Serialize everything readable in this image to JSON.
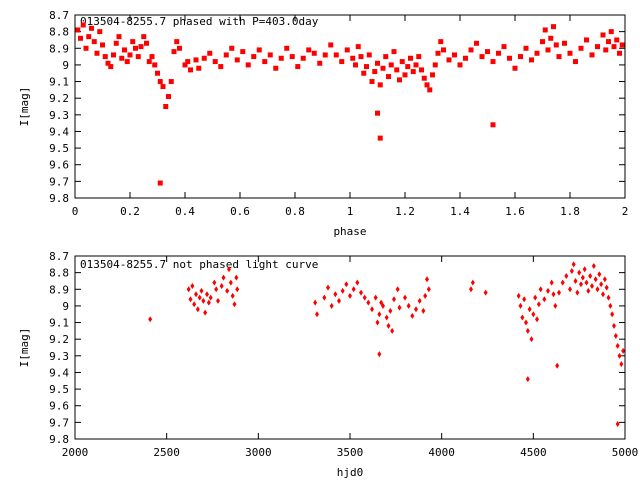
{
  "chart_data": [
    {
      "type": "scatter",
      "title": "013504-8255.7 phased with P=403.0day",
      "xlabel": "phase",
      "ylabel": "I[mag]",
      "xlim": [
        0,
        2
      ],
      "ylim": [
        9.8,
        8.7
      ],
      "y_inverted": true,
      "xticks": [
        "0",
        "0.2",
        "0.4",
        "0.6",
        "0.8",
        "1",
        "1.2",
        "1.4",
        "1.6",
        "1.8",
        "2"
      ],
      "yticks": [
        "8.7",
        "8.8",
        "8.9",
        "9",
        "9.1",
        "9.2",
        "9.3",
        "9.4",
        "9.5",
        "9.6",
        "9.7",
        "9.8"
      ],
      "marker_color": "#ff0000",
      "grid": false,
      "series": [
        {
          "points": [
            [
              0.01,
              8.79
            ],
            [
              0.02,
              8.84
            ],
            [
              0.03,
              8.76
            ],
            [
              0.04,
              8.9
            ],
            [
              0.05,
              8.83
            ],
            [
              0.06,
              8.78
            ],
            [
              0.07,
              8.86
            ],
            [
              0.08,
              8.93
            ],
            [
              0.09,
              8.8
            ],
            [
              0.1,
              8.88
            ],
            [
              0.11,
              8.95
            ],
            [
              0.12,
              8.99
            ],
            [
              0.13,
              9.01
            ],
            [
              0.14,
              8.94
            ],
            [
              0.15,
              8.87
            ],
            [
              0.16,
              8.83
            ],
            [
              0.17,
              8.96
            ],
            [
              0.18,
              8.91
            ],
            [
              0.19,
              8.98
            ],
            [
              0.2,
              8.94
            ],
            [
              0.21,
              8.86
            ],
            [
              0.22,
              8.9
            ],
            [
              0.23,
              8.95
            ],
            [
              0.24,
              8.89
            ],
            [
              0.25,
              8.83
            ],
            [
              0.26,
              8.87
            ],
            [
              0.27,
              8.98
            ],
            [
              0.28,
              8.95
            ],
            [
              0.29,
              9.0
            ],
            [
              0.3,
              9.05
            ],
            [
              0.31,
              9.1
            ],
            [
              0.32,
              9.13
            ],
            [
              0.33,
              9.25
            ],
            [
              0.34,
              9.19
            ],
            [
              0.35,
              9.1
            ],
            [
              0.36,
              8.92
            ],
            [
              0.37,
              8.86
            ],
            [
              0.38,
              8.9
            ],
            [
              0.4,
              9.0
            ],
            [
              0.41,
              8.98
            ],
            [
              0.42,
              9.03
            ],
            [
              0.44,
              8.97
            ],
            [
              0.45,
              9.02
            ],
            [
              0.47,
              8.96
            ],
            [
              0.49,
              8.93
            ],
            [
              0.51,
              8.98
            ],
            [
              0.53,
              9.01
            ],
            [
              0.55,
              8.94
            ],
            [
              0.57,
              8.9
            ],
            [
              0.59,
              8.97
            ],
            [
              0.61,
              8.92
            ],
            [
              0.63,
              9.0
            ],
            [
              0.65,
              8.95
            ],
            [
              0.67,
              8.91
            ],
            [
              0.69,
              8.98
            ],
            [
              0.71,
              8.94
            ],
            [
              0.73,
              9.02
            ],
            [
              0.75,
              8.96
            ],
            [
              0.77,
              8.9
            ],
            [
              0.79,
              8.95
            ],
            [
              0.81,
              9.01
            ],
            [
              0.83,
              8.96
            ],
            [
              0.85,
              8.91
            ],
            [
              0.87,
              8.93
            ],
            [
              0.89,
              8.99
            ],
            [
              0.91,
              8.94
            ],
            [
              0.93,
              8.88
            ],
            [
              0.95,
              8.94
            ],
            [
              0.97,
              8.98
            ],
            [
              0.99,
              8.91
            ],
            [
              1.01,
              8.96
            ],
            [
              1.02,
              9.0
            ],
            [
              1.03,
              8.89
            ],
            [
              1.04,
              8.95
            ],
            [
              1.05,
              9.05
            ],
            [
              1.06,
              9.01
            ],
            [
              1.07,
              8.94
            ],
            [
              1.08,
              9.1
            ],
            [
              1.09,
              9.04
            ],
            [
              1.1,
              8.99
            ],
            [
              1.11,
              9.12
            ],
            [
              1.12,
              9.02
            ],
            [
              1.13,
              8.95
            ],
            [
              1.14,
              9.07
            ],
            [
              1.15,
              9.0
            ],
            [
              1.16,
              8.92
            ],
            [
              1.17,
              9.03
            ],
            [
              1.18,
              9.09
            ],
            [
              1.19,
              8.98
            ],
            [
              1.2,
              9.06
            ],
            [
              1.21,
              9.01
            ],
            [
              1.22,
              8.96
            ],
            [
              1.23,
              9.04
            ],
            [
              1.24,
              9.0
            ],
            [
              1.25,
              8.95
            ],
            [
              1.26,
              9.03
            ],
            [
              1.27,
              9.08
            ],
            [
              1.28,
              9.12
            ],
            [
              1.29,
              9.15
            ],
            [
              1.3,
              9.06
            ],
            [
              1.31,
              9.0
            ],
            [
              1.32,
              8.93
            ],
            [
              1.33,
              8.86
            ],
            [
              1.34,
              8.91
            ],
            [
              1.36,
              8.97
            ],
            [
              1.38,
              8.94
            ],
            [
              1.4,
              9.0
            ],
            [
              1.42,
              8.96
            ],
            [
              1.44,
              8.91
            ],
            [
              1.46,
              8.87
            ],
            [
              1.48,
              8.95
            ],
            [
              1.5,
              8.92
            ],
            [
              1.52,
              8.98
            ],
            [
              1.54,
              8.93
            ],
            [
              1.56,
              8.89
            ],
            [
              1.58,
              8.96
            ],
            [
              1.6,
              9.02
            ],
            [
              1.62,
              8.95
            ],
            [
              1.64,
              8.9
            ],
            [
              1.66,
              8.97
            ],
            [
              1.68,
              8.93
            ],
            [
              1.7,
              8.86
            ],
            [
              1.71,
              8.79
            ],
            [
              1.72,
              8.91
            ],
            [
              1.73,
              8.84
            ],
            [
              1.74,
              8.77
            ],
            [
              1.75,
              8.88
            ],
            [
              1.76,
              8.95
            ],
            [
              1.78,
              8.87
            ],
            [
              1.8,
              8.93
            ],
            [
              1.82,
              8.98
            ],
            [
              1.84,
              8.9
            ],
            [
              1.86,
              8.85
            ],
            [
              1.88,
              8.94
            ],
            [
              1.9,
              8.89
            ],
            [
              1.92,
              8.82
            ],
            [
              1.93,
              8.91
            ],
            [
              1.94,
              8.86
            ],
            [
              1.95,
              8.8
            ],
            [
              1.96,
              8.89
            ],
            [
              1.97,
              8.85
            ],
            [
              1.98,
              8.93
            ],
            [
              1.99,
              8.88
            ],
            [
              0.31,
              9.71
            ],
            [
              1.1,
              9.29
            ],
            [
              1.11,
              9.44
            ],
            [
              1.52,
              9.36
            ]
          ]
        }
      ]
    },
    {
      "type": "scatter",
      "title": "013504-8255.7 not phased light curve",
      "xlabel": "hjd0",
      "ylabel": "I[mag]",
      "xlim": [
        2000,
        5000
      ],
      "ylim": [
        9.8,
        8.7
      ],
      "y_inverted": true,
      "xticks": [
        "2000",
        "2500",
        "3000",
        "3500",
        "4000",
        "4500",
        "5000"
      ],
      "yticks": [
        "8.7",
        "8.8",
        "8.9",
        "9",
        "9.1",
        "9.2",
        "9.3",
        "9.4",
        "9.5",
        "9.6",
        "9.7",
        "9.8"
      ],
      "marker_color": "#ff0000",
      "grid": false,
      "series": [
        {
          "points": [
            [
              2410,
              9.08
            ],
            [
              2620,
              8.9
            ],
            [
              2630,
              8.96
            ],
            [
              2640,
              8.88
            ],
            [
              2650,
              8.99
            ],
            [
              2660,
              8.93
            ],
            [
              2670,
              9.02
            ],
            [
              2680,
              8.95
            ],
            [
              2690,
              8.91
            ],
            [
              2700,
              8.97
            ],
            [
              2710,
              9.04
            ],
            [
              2720,
              8.93
            ],
            [
              2730,
              8.98
            ],
            [
              2740,
              8.95
            ],
            [
              2760,
              8.86
            ],
            [
              2770,
              8.9
            ],
            [
              2780,
              8.97
            ],
            [
              2800,
              8.88
            ],
            [
              2810,
              8.83
            ],
            [
              2830,
              8.91
            ],
            [
              2840,
              8.78
            ],
            [
              2850,
              8.86
            ],
            [
              2860,
              8.94
            ],
            [
              2870,
              8.99
            ],
            [
              2880,
              8.83
            ],
            [
              2885,
              8.9
            ],
            [
              3310,
              8.98
            ],
            [
              3320,
              9.05
            ],
            [
              3360,
              8.95
            ],
            [
              3380,
              8.89
            ],
            [
              3400,
              9.0
            ],
            [
              3420,
              8.93
            ],
            [
              3440,
              8.97
            ],
            [
              3460,
              8.91
            ],
            [
              3480,
              8.87
            ],
            [
              3500,
              8.94
            ],
            [
              3520,
              8.9
            ],
            [
              3540,
              8.86
            ],
            [
              3560,
              8.92
            ],
            [
              3580,
              8.95
            ],
            [
              3600,
              8.98
            ],
            [
              3620,
              9.02
            ],
            [
              3640,
              8.95
            ],
            [
              3650,
              9.1
            ],
            [
              3660,
              9.05
            ],
            [
              3670,
              8.98
            ],
            [
              3680,
              9.0
            ],
            [
              3700,
              9.07
            ],
            [
              3710,
              9.12
            ],
            [
              3720,
              9.03
            ],
            [
              3730,
              9.15
            ],
            [
              3740,
              8.96
            ],
            [
              3760,
              8.9
            ],
            [
              3770,
              9.01
            ],
            [
              3800,
              8.95
            ],
            [
              3820,
              9.0
            ],
            [
              3840,
              9.06
            ],
            [
              3860,
              9.02
            ],
            [
              3880,
              8.97
            ],
            [
              3900,
              9.03
            ],
            [
              3910,
              8.94
            ],
            [
              3920,
              8.84
            ],
            [
              3930,
              8.9
            ],
            [
              4160,
              8.9
            ],
            [
              4170,
              8.86
            ],
            [
              4240,
              8.92
            ],
            [
              4420,
              8.94
            ],
            [
              4430,
              9.0
            ],
            [
              4440,
              9.07
            ],
            [
              4450,
              8.96
            ],
            [
              4460,
              9.1
            ],
            [
              4470,
              9.15
            ],
            [
              4480,
              9.02
            ],
            [
              4490,
              9.2
            ],
            [
              4500,
              9.05
            ],
            [
              4510,
              8.95
            ],
            [
              4520,
              9.08
            ],
            [
              4530,
              8.99
            ],
            [
              4540,
              8.9
            ],
            [
              4560,
              8.96
            ],
            [
              4580,
              8.91
            ],
            [
              4600,
              8.86
            ],
            [
              4610,
              8.93
            ],
            [
              4620,
              9.0
            ],
            [
              4640,
              8.92
            ],
            [
              4660,
              8.86
            ],
            [
              4680,
              8.82
            ],
            [
              4700,
              8.9
            ],
            [
              4710,
              8.79
            ],
            [
              4720,
              8.75
            ],
            [
              4730,
              8.85
            ],
            [
              4740,
              8.92
            ],
            [
              4750,
              8.8
            ],
            [
              4760,
              8.87
            ],
            [
              4770,
              8.83
            ],
            [
              4780,
              8.78
            ],
            [
              4790,
              8.86
            ],
            [
              4800,
              8.91
            ],
            [
              4810,
              8.82
            ],
            [
              4820,
              8.88
            ],
            [
              4830,
              8.76
            ],
            [
              4840,
              8.84
            ],
            [
              4850,
              8.9
            ],
            [
              4860,
              8.81
            ],
            [
              4870,
              8.87
            ],
            [
              4880,
              8.93
            ],
            [
              4890,
              8.84
            ],
            [
              4900,
              8.89
            ],
            [
              4910,
              8.95
            ],
            [
              4920,
              9.0
            ],
            [
              4930,
              9.05
            ],
            [
              4940,
              9.12
            ],
            [
              4950,
              9.18
            ],
            [
              4960,
              9.24
            ],
            [
              4970,
              9.3
            ],
            [
              4980,
              9.35
            ],
            [
              4990,
              9.27
            ],
            [
              3660,
              9.29
            ],
            [
              4470,
              9.44
            ],
            [
              4630,
              9.36
            ],
            [
              4960,
              9.71
            ]
          ]
        }
      ]
    }
  ]
}
